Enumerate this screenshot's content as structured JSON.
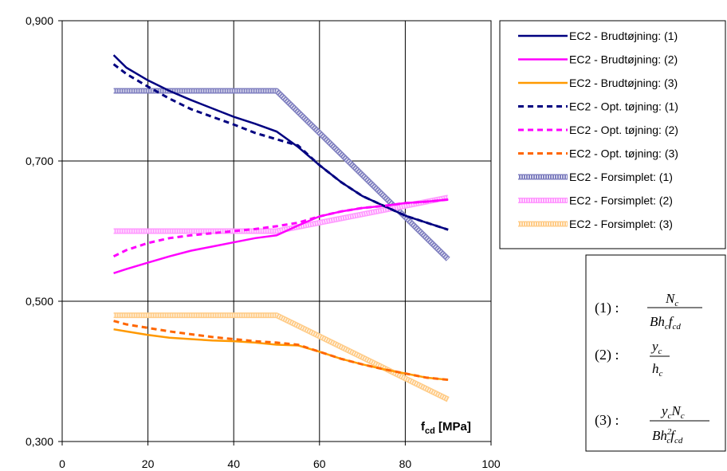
{
  "chart_data": {
    "type": "line",
    "xlim": [
      0,
      100
    ],
    "ylim": [
      0.3,
      0.9
    ],
    "x_ticks": [
      "0",
      "20",
      "40",
      "60",
      "80",
      "100"
    ],
    "y_ticks": [
      "0,300",
      "0,500",
      "0,700",
      "0,900"
    ],
    "y_tick_values": [
      0.3,
      0.5,
      0.7,
      0.9
    ],
    "grid": true,
    "xlabel_main": "f",
    "xlabel_sub": "cd",
    "xlabel_unit": " [MPa]",
    "legend_position": "right",
    "series": [
      {
        "name": "EC2 - Brudtøjning: (1)",
        "color": "#000080",
        "style": "solid",
        "x": [
          12,
          15,
          20,
          25,
          30,
          35,
          40,
          45,
          50,
          55,
          60,
          65,
          70,
          75,
          80,
          85,
          90
        ],
        "y": [
          0.851,
          0.833,
          0.815,
          0.8,
          0.787,
          0.775,
          0.763,
          0.753,
          0.742,
          0.72,
          0.694,
          0.67,
          0.65,
          0.636,
          0.622,
          0.612,
          0.602
        ]
      },
      {
        "name": "EC2 - Brudtøjning: (2)",
        "color": "#ff00ff",
        "style": "solid",
        "x": [
          12,
          15,
          20,
          25,
          30,
          35,
          40,
          45,
          50,
          55,
          60,
          65,
          70,
          75,
          80,
          85,
          90
        ],
        "y": [
          0.54,
          0.546,
          0.555,
          0.564,
          0.572,
          0.578,
          0.584,
          0.59,
          0.594,
          0.608,
          0.621,
          0.628,
          0.633,
          0.636,
          0.64,
          0.642,
          0.645
        ]
      },
      {
        "name": "EC2 - Brudtøjning: (3)",
        "color": "#ff9900",
        "style": "solid",
        "x": [
          12,
          15,
          20,
          25,
          30,
          35,
          40,
          45,
          50,
          55,
          60,
          65,
          70,
          75,
          80,
          85,
          90
        ],
        "y": [
          0.46,
          0.457,
          0.452,
          0.448,
          0.446,
          0.444,
          0.443,
          0.441,
          0.438,
          0.437,
          0.428,
          0.418,
          0.41,
          0.403,
          0.397,
          0.391,
          0.388
        ]
      },
      {
        "name": "EC2 - Opt. tøjning: (1)",
        "color": "#000080",
        "style": "dashed",
        "x": [
          12,
          15,
          20,
          25,
          30,
          35,
          40,
          45,
          50,
          55,
          60,
          65,
          70,
          75,
          80,
          85,
          90
        ],
        "y": [
          0.838,
          0.824,
          0.806,
          0.789,
          0.774,
          0.763,
          0.752,
          0.74,
          0.731,
          0.722,
          0.694,
          0.67,
          0.65,
          0.636,
          0.622,
          0.612,
          0.602
        ]
      },
      {
        "name": "EC2 - Opt. tøjning: (2)",
        "color": "#ff00ff",
        "style": "dashed",
        "x": [
          12,
          15,
          20,
          25,
          30,
          35,
          40,
          45,
          50,
          55,
          60,
          65,
          70,
          75,
          80,
          85,
          90
        ],
        "y": [
          0.564,
          0.573,
          0.583,
          0.59,
          0.594,
          0.597,
          0.6,
          0.603,
          0.607,
          0.612,
          0.621,
          0.628,
          0.633,
          0.636,
          0.64,
          0.642,
          0.645
        ]
      },
      {
        "name": "EC2 - Opt. tøjning: (3)",
        "color": "#ff6600",
        "style": "dashed",
        "x": [
          12,
          15,
          20,
          25,
          30,
          35,
          40,
          45,
          50,
          55,
          60,
          65,
          70,
          75,
          80,
          85,
          90
        ],
        "y": [
          0.472,
          0.467,
          0.462,
          0.457,
          0.453,
          0.449,
          0.446,
          0.443,
          0.441,
          0.438,
          0.428,
          0.418,
          0.41,
          0.403,
          0.397,
          0.391,
          0.388
        ]
      },
      {
        "name": "EC2 - Forsimplet: (1)",
        "color": "#8080c0",
        "style": "hatched",
        "x": [
          12,
          50,
          90
        ],
        "y": [
          0.8,
          0.8,
          0.56
        ]
      },
      {
        "name": "EC2 - Forsimplet: (2)",
        "color": "#ff99ff",
        "style": "hatched",
        "x": [
          12,
          50,
          90
        ],
        "y": [
          0.6,
          0.6,
          0.648
        ]
      },
      {
        "name": "EC2 - Forsimplet: (3)",
        "color": "#ffcc88",
        "style": "hatched",
        "x": [
          12,
          50,
          90
        ],
        "y": [
          0.48,
          0.48,
          0.36
        ]
      }
    ]
  },
  "formula_box": {
    "items": [
      {
        "label": "(1) :",
        "num": "N",
        "num_sub": "c",
        "den": "Bh",
        "den_sub1": "c",
        "den_mid": "f",
        "den_sub2": "cd"
      },
      {
        "label": "(2) :",
        "num": "y",
        "num_sub": "c",
        "den": "h",
        "den_sub1": "c",
        "den_mid": "",
        "den_sub2": ""
      },
      {
        "label": "(3) :",
        "num": "y",
        "num_sub": "c",
        "num2": "N",
        "num2_sub": "c",
        "den": "Bh",
        "den_sup": "2",
        "den_sub1": "c",
        "den_mid": "f",
        "den_sub2": "cd"
      }
    ]
  }
}
